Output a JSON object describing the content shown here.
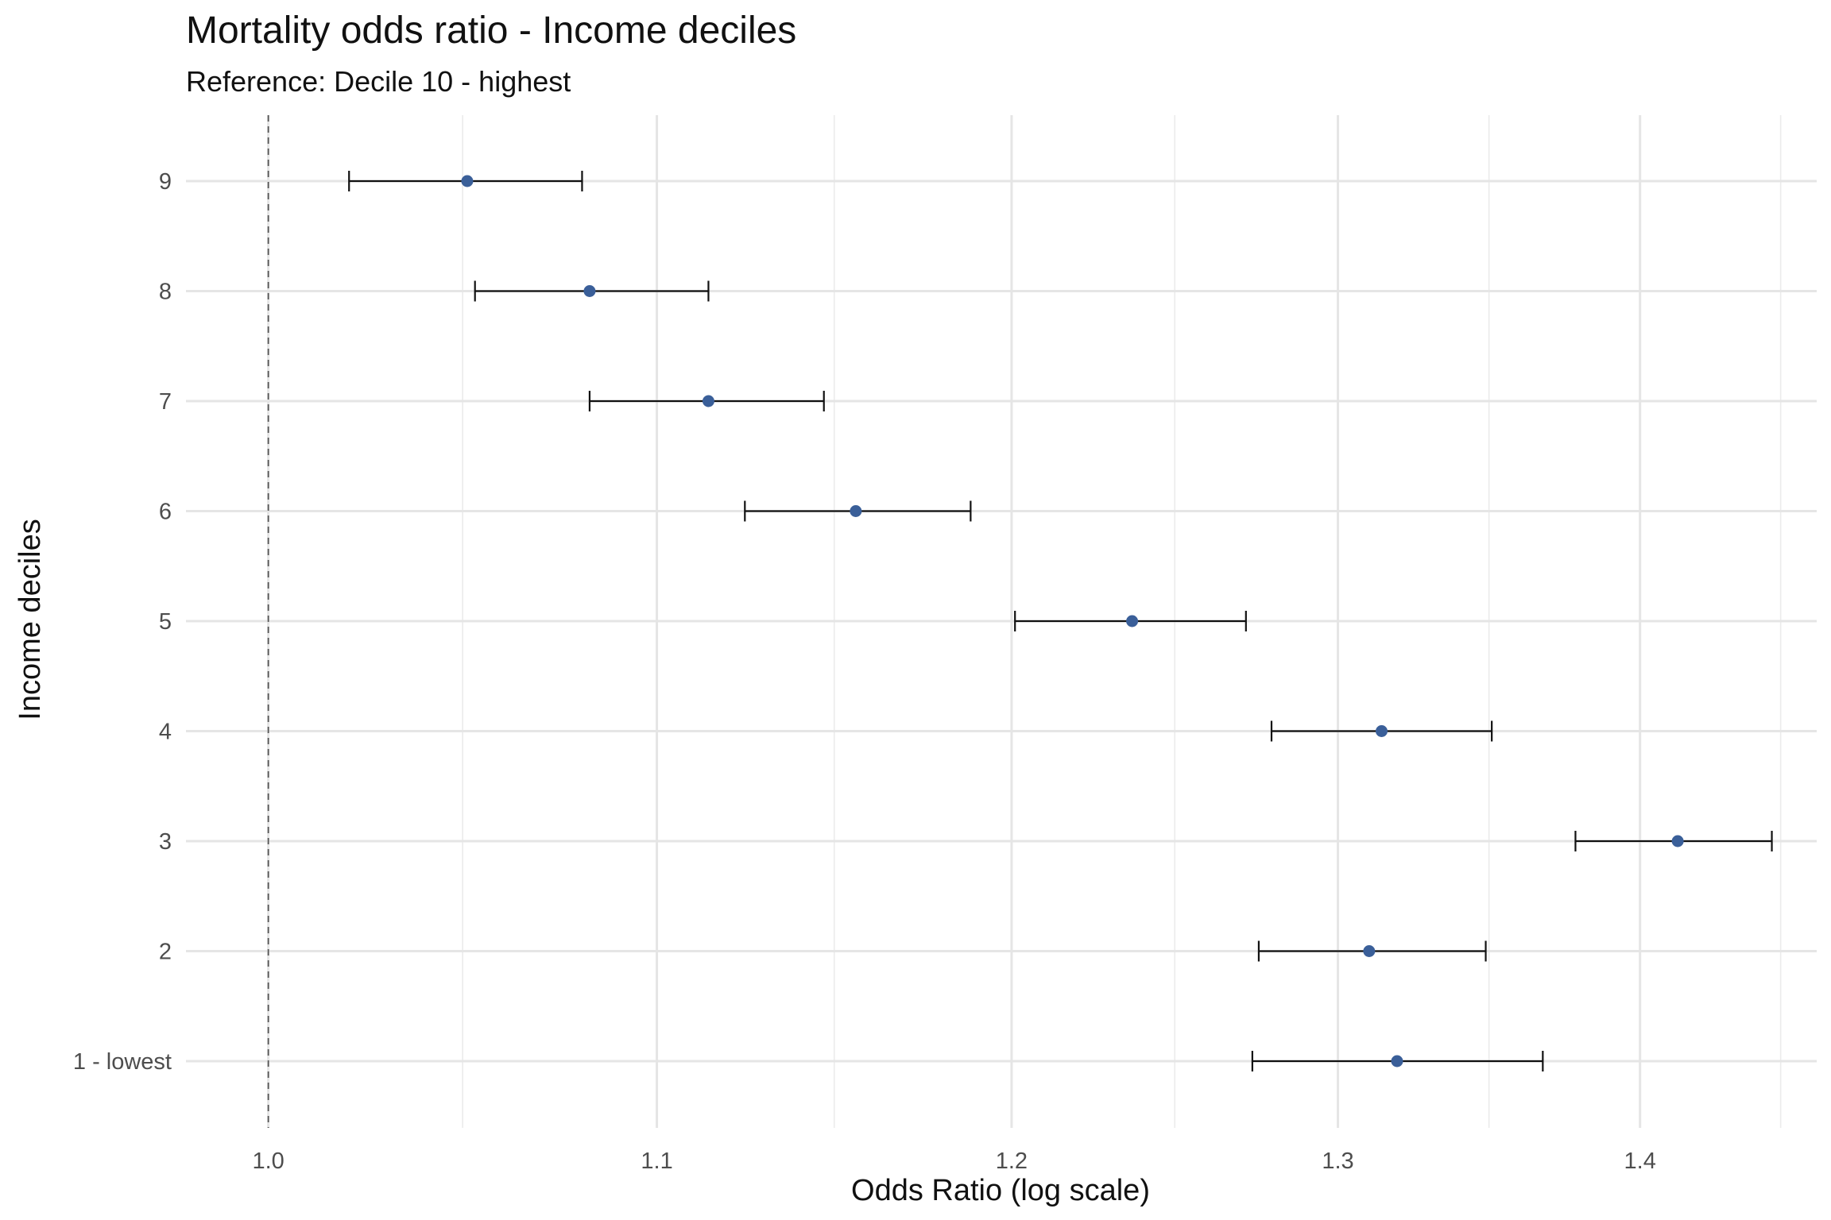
{
  "chart_data": {
    "type": "scatter",
    "title": "Mortality odds ratio - Income deciles",
    "subtitle": "Reference: Decile 10 - highest",
    "xlabel": "Odds Ratio (log scale)",
    "ylabel": "Income deciles",
    "x_scale": "log",
    "xlim": [
      0.98,
      1.462
    ],
    "x_ticks": [
      "1.0",
      "1.1",
      "1.2",
      "1.3",
      "1.4"
    ],
    "x_tick_values": [
      1.0,
      1.1,
      1.2,
      1.3,
      1.4
    ],
    "reference_line": 1.0,
    "grid": true,
    "point_color": "#3a5f99",
    "categories": [
      "9",
      "8",
      "7",
      "6",
      "5",
      "4",
      "3",
      "2",
      "1 - lowest"
    ],
    "estimate": [
      1.05,
      1.082,
      1.114,
      1.155,
      1.236,
      1.314,
      1.413,
      1.31,
      1.319
    ],
    "ci_low": [
      1.02,
      1.052,
      1.082,
      1.124,
      1.201,
      1.279,
      1.378,
      1.275,
      1.273
    ],
    "ci_high": [
      1.08,
      1.114,
      1.146,
      1.188,
      1.271,
      1.35,
      1.446,
      1.348,
      1.367
    ]
  }
}
